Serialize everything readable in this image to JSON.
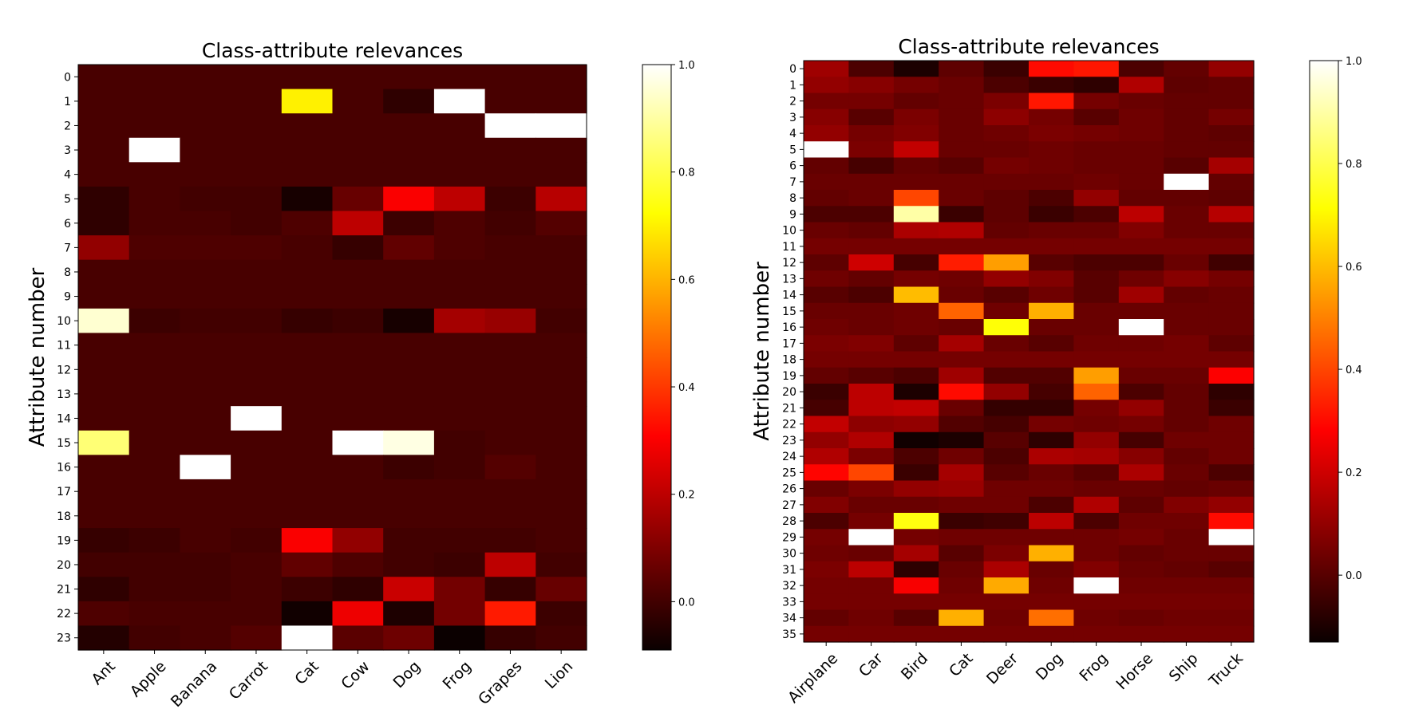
{
  "chart_data": [
    {
      "type": "heatmap",
      "title": "Class-attribute relevances",
      "xlabel": "",
      "ylabel": "Attribute number",
      "colormap": "hot",
      "vmin": -0.09,
      "vmax": 1.0,
      "colorbar_ticks": [
        "0.0",
        "0.2",
        "0.4",
        "0.6",
        "0.8",
        "1.0"
      ],
      "colorbar_tick_values": [
        0.0,
        0.2,
        0.4,
        0.6,
        0.8,
        1.0
      ],
      "x_categories": [
        "Ant",
        "Apple",
        "Banana",
        "Carrot",
        "Cat",
        "Cow",
        "Dog",
        "Frog",
        "Grapes",
        "Lion"
      ],
      "y_labels": [
        "0",
        "1",
        "2",
        "3",
        "4",
        "5",
        "6",
        "7",
        "8",
        "9",
        "10",
        "11",
        "12",
        "13",
        "14",
        "15",
        "16",
        "17",
        "18",
        "19",
        "20",
        "21",
        "22",
        "23"
      ],
      "values": [
        [
          0.01,
          0.01,
          0.01,
          0.01,
          0.01,
          0.01,
          0.01,
          0.01,
          0.01,
          0.01
        ],
        [
          0.01,
          0.01,
          0.01,
          0.01,
          0.7,
          0.01,
          -0.03,
          1.0,
          0.01,
          0.01
        ],
        [
          0.01,
          0.01,
          0.01,
          0.01,
          0.01,
          0.01,
          0.01,
          0.01,
          1.0,
          1.0
        ],
        [
          0.01,
          1.0,
          0.01,
          0.01,
          0.01,
          0.01,
          0.01,
          0.01,
          0.01,
          0.01
        ],
        [
          0.01,
          0.01,
          0.01,
          0.01,
          0.01,
          0.01,
          0.01,
          0.01,
          0.01,
          0.01
        ],
        [
          -0.03,
          0.01,
          0.0,
          0.0,
          -0.07,
          0.06,
          0.3,
          0.2,
          -0.01,
          0.19
        ],
        [
          -0.03,
          0.01,
          0.01,
          0.0,
          0.02,
          0.2,
          -0.01,
          0.02,
          0.0,
          0.03
        ],
        [
          0.13,
          0.02,
          0.02,
          0.02,
          0.01,
          -0.02,
          0.05,
          0.02,
          0.01,
          0.01
        ],
        [
          0.01,
          0.01,
          0.01,
          0.01,
          0.01,
          0.01,
          0.01,
          0.01,
          0.01,
          0.01
        ],
        [
          0.01,
          0.01,
          0.01,
          0.01,
          0.01,
          0.01,
          0.01,
          0.01,
          0.01,
          0.01
        ],
        [
          0.95,
          -0.01,
          0.0,
          0.0,
          -0.02,
          -0.01,
          -0.07,
          0.16,
          0.14,
          0.0
        ],
        [
          0.01,
          0.01,
          0.01,
          0.01,
          0.01,
          0.01,
          0.01,
          0.01,
          0.01,
          0.01
        ],
        [
          0.01,
          0.01,
          0.01,
          0.01,
          0.01,
          0.01,
          0.01,
          0.01,
          0.01,
          0.01
        ],
        [
          0.01,
          0.01,
          0.01,
          0.01,
          0.01,
          0.01,
          0.01,
          0.01,
          0.01,
          0.01
        ],
        [
          0.01,
          0.01,
          0.01,
          1.0,
          0.01,
          0.01,
          0.01,
          0.01,
          0.01,
          0.01
        ],
        [
          0.85,
          0.01,
          0.01,
          0.01,
          0.01,
          1.0,
          0.97,
          0.0,
          0.01,
          0.01
        ],
        [
          0.01,
          0.01,
          1.0,
          0.01,
          0.01,
          0.01,
          -0.01,
          0.0,
          0.03,
          0.01
        ],
        [
          0.01,
          0.01,
          0.01,
          0.01,
          0.01,
          0.01,
          0.01,
          0.01,
          0.01,
          0.01
        ],
        [
          0.01,
          0.01,
          0.01,
          0.01,
          0.01,
          0.01,
          0.01,
          0.01,
          0.01,
          0.01
        ],
        [
          -0.02,
          -0.01,
          0.01,
          0.0,
          0.3,
          0.13,
          0.0,
          0.0,
          0.0,
          0.01
        ],
        [
          0.0,
          0.0,
          0.0,
          0.01,
          0.05,
          0.02,
          0.0,
          -0.01,
          0.2,
          0.0
        ],
        [
          -0.03,
          0.0,
          0.0,
          0.01,
          -0.01,
          -0.03,
          0.22,
          0.08,
          -0.02,
          0.06
        ],
        [
          0.02,
          0.01,
          0.01,
          0.01,
          -0.08,
          0.28,
          -0.06,
          0.08,
          0.35,
          -0.01
        ],
        [
          -0.05,
          0.0,
          0.01,
          0.03,
          1.0,
          0.04,
          0.07,
          -0.09,
          -0.02,
          0.0
        ]
      ]
    },
    {
      "type": "heatmap",
      "title": "Class-attribute relevances",
      "xlabel": "",
      "ylabel": "Attribute number",
      "colormap": "hot",
      "vmin": -0.13,
      "vmax": 1.0,
      "colorbar_ticks": [
        "0.0",
        "0.2",
        "0.4",
        "0.6",
        "0.8",
        "1.0"
      ],
      "colorbar_tick_values": [
        0.0,
        0.2,
        0.4,
        0.6,
        0.8,
        1.0
      ],
      "x_categories": [
        "Airplane",
        "Car",
        "Bird",
        "Cat",
        "Deer",
        "Dog",
        "Frog",
        "Horse",
        "Ship",
        "Truck"
      ],
      "y_labels": [
        "0",
        "1",
        "2",
        "3",
        "4",
        "5",
        "6",
        "7",
        "8",
        "9",
        "10",
        "11",
        "12",
        "13",
        "14",
        "15",
        "16",
        "17",
        "18",
        "19",
        "20",
        "21",
        "22",
        "23",
        "24",
        "25",
        "26",
        "27",
        "28",
        "29",
        "30",
        "31",
        "32",
        "33",
        "34",
        "35"
      ],
      "values": [
        [
          0.12,
          -0.02,
          -0.1,
          0.01,
          -0.05,
          0.3,
          0.32,
          -0.02,
          0.02,
          0.1
        ],
        [
          0.1,
          0.08,
          0.05,
          0.03,
          -0.02,
          -0.05,
          -0.07,
          0.15,
          0.01,
          0.02
        ],
        [
          0.05,
          0.05,
          0.02,
          0.03,
          0.06,
          0.32,
          0.05,
          0.03,
          0.02,
          0.02
        ],
        [
          0.08,
          0.0,
          0.06,
          0.03,
          0.09,
          0.05,
          0.0,
          0.04,
          0.02,
          0.05
        ],
        [
          0.1,
          0.05,
          0.07,
          0.03,
          0.04,
          0.06,
          0.05,
          0.04,
          0.02,
          0.01
        ],
        [
          1.0,
          0.06,
          0.18,
          0.03,
          0.03,
          0.04,
          0.03,
          0.03,
          0.02,
          0.02
        ],
        [
          0.02,
          -0.03,
          0.02,
          0.0,
          0.05,
          0.04,
          0.03,
          0.03,
          0.0,
          0.13
        ],
        [
          0.03,
          0.03,
          0.03,
          0.03,
          0.03,
          0.03,
          0.04,
          0.03,
          1.0,
          0.02
        ],
        [
          0.02,
          0.03,
          0.4,
          0.03,
          0.01,
          -0.02,
          0.1,
          0.02,
          0.02,
          0.01
        ],
        [
          -0.02,
          -0.02,
          0.9,
          -0.05,
          0.01,
          -0.05,
          -0.02,
          0.17,
          0.03,
          0.16
        ],
        [
          0.03,
          0.02,
          0.14,
          0.15,
          0.02,
          0.03,
          0.03,
          0.07,
          0.03,
          0.03
        ],
        [
          0.05,
          0.05,
          0.05,
          0.05,
          0.05,
          0.05,
          0.05,
          0.05,
          0.05,
          0.05
        ],
        [
          0.01,
          0.2,
          -0.03,
          0.33,
          0.55,
          0.0,
          -0.02,
          -0.02,
          0.03,
          -0.04
        ],
        [
          0.04,
          0.02,
          0.05,
          0.04,
          0.1,
          0.07,
          0.0,
          0.04,
          0.08,
          0.05
        ],
        [
          0.0,
          -0.02,
          0.6,
          0.03,
          0.0,
          0.04,
          0.0,
          0.12,
          0.02,
          0.03
        ],
        [
          0.03,
          0.03,
          0.04,
          0.45,
          0.04,
          0.58,
          0.03,
          0.03,
          0.03,
          0.03
        ],
        [
          0.04,
          0.03,
          0.04,
          0.03,
          0.72,
          0.03,
          0.03,
          1.0,
          0.03,
          0.03
        ],
        [
          0.06,
          0.07,
          0.01,
          0.13,
          0.03,
          0.0,
          0.04,
          0.04,
          0.05,
          0.01
        ],
        [
          0.05,
          0.05,
          0.05,
          0.05,
          0.05,
          0.05,
          0.05,
          0.05,
          0.05,
          0.05
        ],
        [
          0.02,
          0.0,
          -0.02,
          0.12,
          -0.01,
          -0.01,
          0.55,
          0.03,
          0.03,
          0.28
        ],
        [
          -0.05,
          0.17,
          -0.1,
          0.3,
          0.1,
          -0.03,
          0.45,
          -0.02,
          0.02,
          -0.07
        ],
        [
          -0.03,
          0.17,
          0.18,
          0.03,
          -0.06,
          -0.06,
          0.05,
          0.1,
          0.02,
          -0.05
        ],
        [
          0.18,
          0.09,
          0.1,
          -0.01,
          -0.03,
          0.05,
          0.04,
          0.05,
          0.02,
          0.04
        ],
        [
          0.1,
          0.15,
          -0.12,
          -0.1,
          0.0,
          -0.07,
          0.1,
          -0.03,
          0.04,
          0.04
        ],
        [
          0.15,
          0.06,
          -0.02,
          0.04,
          -0.02,
          0.14,
          0.13,
          0.08,
          0.02,
          0.04
        ],
        [
          0.29,
          0.4,
          -0.05,
          0.13,
          0.0,
          0.03,
          0.0,
          0.14,
          0.03,
          -0.02
        ],
        [
          0.03,
          0.06,
          0.1,
          0.11,
          0.04,
          0.04,
          0.03,
          0.03,
          0.02,
          0.03
        ],
        [
          0.07,
          0.03,
          0.03,
          0.04,
          0.04,
          -0.02,
          0.15,
          0.01,
          0.07,
          0.1
        ],
        [
          -0.02,
          0.05,
          0.73,
          -0.05,
          -0.04,
          0.17,
          -0.02,
          0.04,
          0.04,
          0.3
        ],
        [
          0.05,
          1.0,
          0.05,
          0.04,
          0.04,
          0.04,
          0.04,
          0.05,
          0.03,
          1.0
        ],
        [
          0.04,
          0.03,
          0.13,
          0.0,
          0.06,
          0.58,
          0.04,
          0.02,
          0.03,
          0.03
        ],
        [
          0.06,
          0.17,
          -0.07,
          0.03,
          0.14,
          0.03,
          0.07,
          0.03,
          0.02,
          0.0
        ],
        [
          0.05,
          0.05,
          0.27,
          0.04,
          0.57,
          0.04,
          1.0,
          0.04,
          0.04,
          0.04
        ],
        [
          0.05,
          0.05,
          0.05,
          0.05,
          0.05,
          0.05,
          0.05,
          0.05,
          0.05,
          0.05
        ],
        [
          0.02,
          0.04,
          0.0,
          0.58,
          0.04,
          0.47,
          0.04,
          0.03,
          0.04,
          0.04
        ],
        [
          0.05,
          0.05,
          0.05,
          0.05,
          0.05,
          0.05,
          0.05,
          0.05,
          0.05,
          0.05
        ]
      ]
    }
  ]
}
